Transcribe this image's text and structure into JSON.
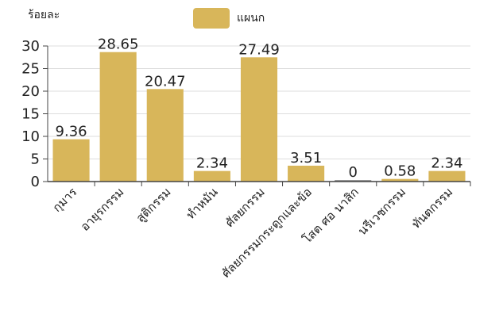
{
  "chart_data": {
    "type": "bar",
    "ylabel": "ร้อยละ",
    "legend": "top-center",
    "grid": true,
    "ylim": [
      0,
      30
    ],
    "yticks": [
      0,
      5,
      10,
      15,
      20,
      25,
      30
    ],
    "categories": [
      "กุมาร",
      "อายุรกรรม",
      "สูติกรรม",
      "ทำหมัน",
      "ศัลยกรรม",
      "ศัลยกรรมกระดูกและข้อ",
      "โสต ศอ นาสิก",
      "นรีเวชกรรม",
      "ทันตกรรม"
    ],
    "series": [
      {
        "name": "แผนก",
        "values": [
          9.36,
          28.65,
          20.47,
          2.34,
          27.49,
          3.51,
          0,
          0.58,
          2.34
        ],
        "color": "#d8b65a"
      }
    ],
    "data_labels": [
      "9.36",
      "28.65",
      "20.47",
      "2.34",
      "27.49",
      "3.51",
      "0",
      "0.58",
      "2.34"
    ]
  },
  "colors": {
    "bar": "#d8b65a",
    "grid": "#dddddd",
    "axis": "#444444",
    "text": "#222222"
  }
}
